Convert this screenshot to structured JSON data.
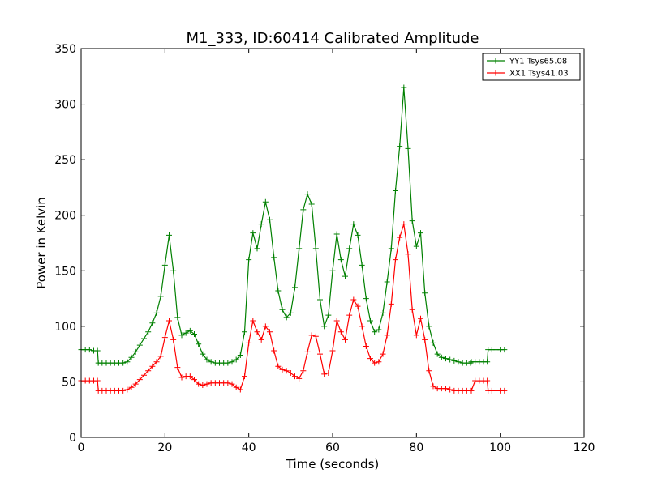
{
  "chart_data": {
    "type": "line",
    "title": "M1_333, ID:60414 Calibrated Amplitude",
    "xlabel": "Time (seconds)",
    "ylabel": "Power in Kelvin",
    "xlim": [
      0,
      120
    ],
    "ylim": [
      0,
      350
    ],
    "xticks": [
      0,
      20,
      40,
      60,
      80,
      100,
      120
    ],
    "yticks": [
      0,
      50,
      100,
      150,
      200,
      250,
      300,
      350
    ],
    "grid": false,
    "legend_position": "top-right",
    "marker": "+",
    "series": [
      {
        "name": "YY1 Tsys65.08",
        "color": "#008000",
        "x": [
          0,
          1,
          2,
          3,
          3.9,
          4.1,
          5,
          6,
          7,
          8,
          9,
          10,
          11,
          12,
          13,
          14,
          15,
          16,
          17,
          18,
          19,
          20,
          21,
          22,
          23,
          24,
          25,
          26,
          27,
          28,
          29,
          30,
          31,
          32,
          33,
          34,
          35,
          36,
          37,
          38,
          39,
          40,
          41,
          42,
          43,
          44,
          45,
          46,
          47,
          48,
          49,
          50,
          51,
          52,
          53,
          54,
          55,
          56,
          57,
          58,
          59,
          60,
          61,
          62,
          63,
          64,
          65,
          66,
          67,
          68,
          69,
          70,
          71,
          72,
          73,
          74,
          75,
          76,
          77,
          78,
          79,
          80,
          81,
          82,
          83,
          84,
          85,
          86,
          87,
          88,
          89,
          90,
          91,
          92,
          92.9,
          93.1,
          94,
          95,
          96,
          96.9,
          97.1,
          98,
          99,
          100,
          101
        ],
        "y": [
          79,
          79,
          79,
          78,
          78,
          67,
          67,
          67,
          67,
          67,
          67,
          67,
          68,
          72,
          77,
          83,
          89,
          95,
          103,
          112,
          127,
          155,
          182,
          150,
          108,
          92,
          94,
          96,
          93,
          84,
          75,
          70,
          68,
          67,
          67,
          67,
          67,
          68,
          70,
          74,
          95,
          160,
          184,
          170,
          192,
          212,
          196,
          162,
          132,
          115,
          108,
          112,
          135,
          170,
          205,
          219,
          210,
          170,
          124,
          100,
          110,
          150,
          183,
          160,
          145,
          170,
          192,
          182,
          155,
          125,
          105,
          95,
          97,
          112,
          140,
          170,
          222,
          262,
          315,
          260,
          195,
          172,
          184,
          130,
          100,
          85,
          75,
          72,
          71,
          70,
          69,
          68,
          67,
          67,
          67,
          68,
          68,
          68,
          68,
          68,
          79,
          79,
          79,
          79,
          79
        ]
      },
      {
        "name": "XX1 Tsys41.03",
        "color": "#ff0000",
        "x": [
          0,
          1,
          2,
          3,
          3.9,
          4.1,
          5,
          6,
          7,
          8,
          9,
          10,
          11,
          12,
          13,
          14,
          15,
          16,
          17,
          18,
          19,
          20,
          21,
          22,
          23,
          24,
          25,
          26,
          27,
          28,
          29,
          30,
          31,
          32,
          33,
          34,
          35,
          36,
          37,
          38,
          39,
          40,
          41,
          42,
          43,
          44,
          45,
          46,
          47,
          48,
          49,
          50,
          51,
          52,
          53,
          54,
          55,
          56,
          57,
          58,
          59,
          60,
          61,
          62,
          63,
          64,
          65,
          66,
          67,
          68,
          69,
          70,
          71,
          72,
          73,
          74,
          75,
          76,
          77,
          78,
          79,
          80,
          81,
          82,
          83,
          84,
          85,
          86,
          87,
          88,
          89,
          90,
          91,
          92,
          92.9,
          93.1,
          94,
          95,
          96,
          96.9,
          97.1,
          98,
          99,
          100,
          101
        ],
        "y": [
          51,
          51,
          51,
          51,
          51,
          42,
          42,
          42,
          42,
          42,
          42,
          42,
          43,
          45,
          48,
          52,
          56,
          60,
          64,
          68,
          73,
          90,
          105,
          88,
          63,
          54,
          55,
          55,
          52,
          48,
          47,
          48,
          49,
          49,
          49,
          49,
          49,
          48,
          45,
          43,
          55,
          85,
          105,
          95,
          88,
          100,
          95,
          78,
          64,
          61,
          60,
          58,
          55,
          53,
          60,
          77,
          92,
          91,
          75,
          57,
          58,
          78,
          105,
          95,
          88,
          110,
          124,
          118,
          100,
          82,
          71,
          67,
          68,
          75,
          92,
          120,
          160,
          180,
          192,
          165,
          115,
          92,
          107,
          88,
          60,
          46,
          44,
          44,
          44,
          43,
          42,
          42,
          42,
          42,
          42,
          42,
          51,
          51,
          51,
          51,
          42,
          42,
          42,
          42,
          42
        ]
      }
    ]
  }
}
